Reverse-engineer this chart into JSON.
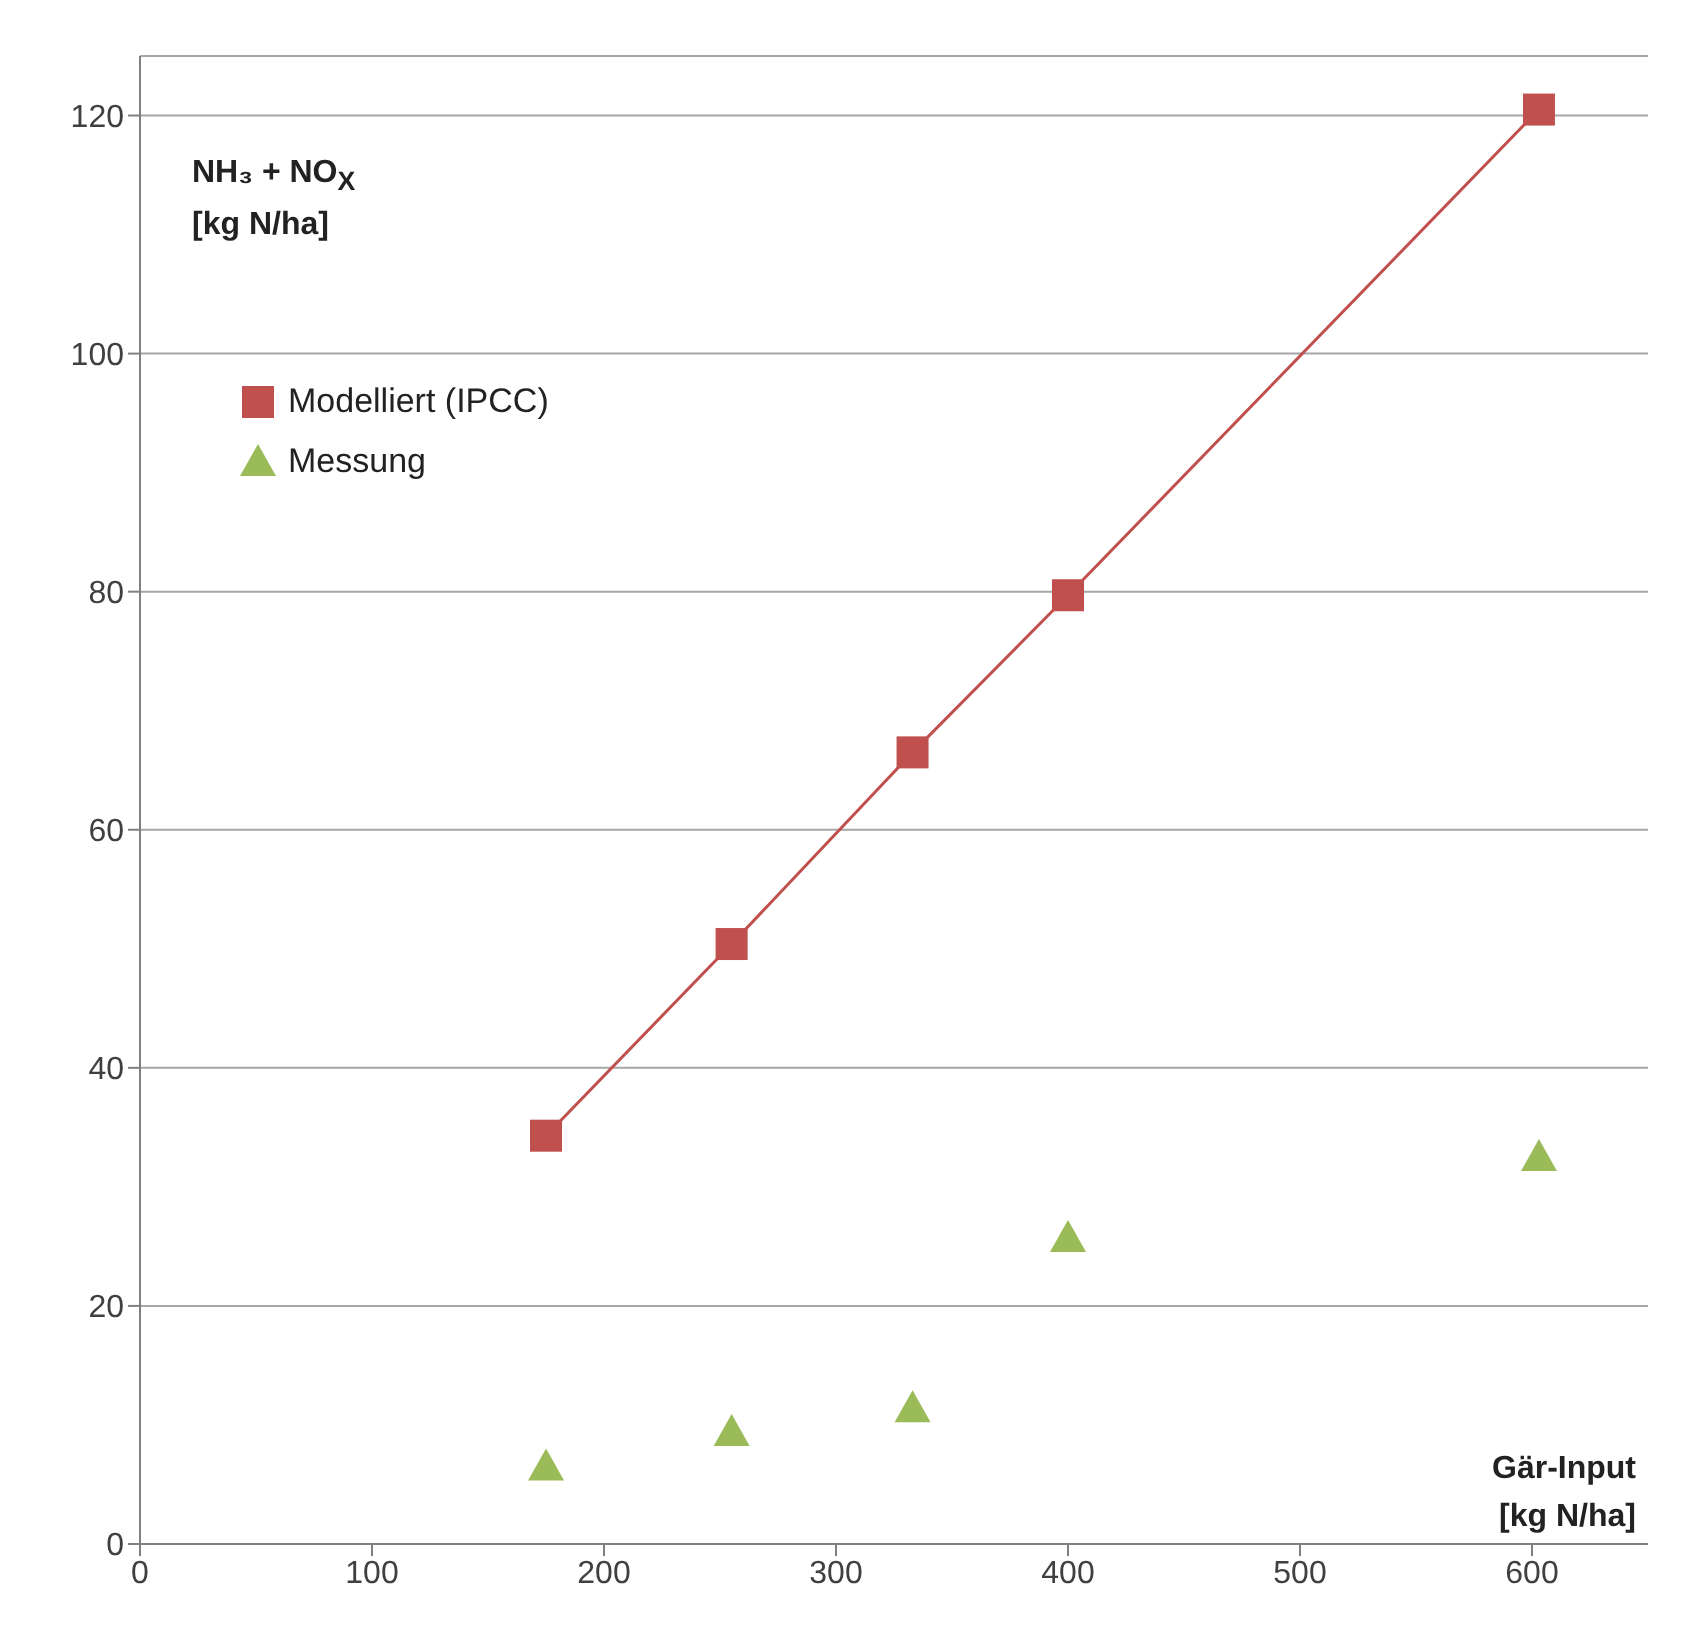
{
  "chart_data": {
    "type": "line",
    "xlabel": "Gär-Input [kg N/ha]",
    "ylabel": "NH₃ + NO$_{X}$ [kg N/ha]",
    "xlim": [
      0,
      650
    ],
    "xticks": [
      0,
      100,
      200,
      300,
      400,
      500,
      600
    ],
    "ylim": [
      0,
      125
    ],
    "yticks": [
      0,
      20,
      40,
      60,
      80,
      100,
      120
    ],
    "grid": "y",
    "legend": "top left",
    "series": [
      {
        "name": "Modelliert (IPCC)",
        "marker": "square",
        "line_style": "solid",
        "color": "#c0504d",
        "x": [
          175,
          255,
          333,
          400,
          603
        ],
        "values": [
          34.3,
          50.4,
          66.5,
          79.7,
          120.5
        ]
      },
      {
        "name": "Messung",
        "type": "scatter",
        "marker": "triangle",
        "color": "#9bbb59",
        "x": [
          175,
          255,
          333,
          400,
          603
        ],
        "values": [
          6.5,
          9.4,
          11.4,
          25.7,
          32.5
        ]
      }
    ]
  }
}
